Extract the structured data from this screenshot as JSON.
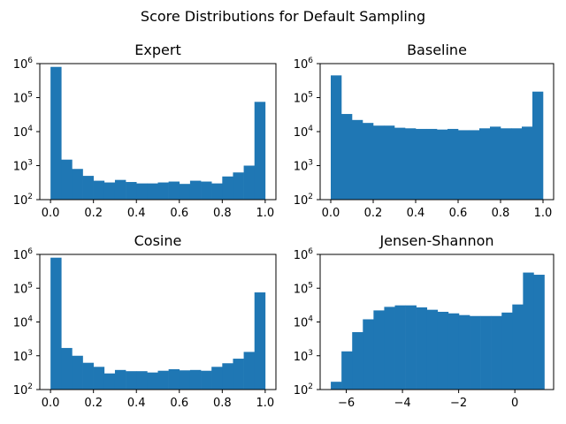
{
  "figure": {
    "title": "Score Distributions for Default Sampling"
  },
  "chart_data": [
    {
      "type": "bar",
      "title": "Expert",
      "y_scale": "log",
      "ylim": [
        100,
        1000000
      ],
      "xlim": [
        -0.05,
        1.05
      ],
      "bin_edges": [
        0.0,
        0.05,
        0.1,
        0.15,
        0.2,
        0.25,
        0.3,
        0.35,
        0.4,
        0.45,
        0.5,
        0.55,
        0.6,
        0.65,
        0.7,
        0.75,
        0.8,
        0.85,
        0.9,
        0.95,
        1.0
      ],
      "values": [
        800000,
        1500,
        800,
        500,
        360,
        320,
        380,
        330,
        300,
        300,
        320,
        340,
        290,
        360,
        340,
        300,
        480,
        630,
        1000,
        75000
      ],
      "x_ticks": [
        0.0,
        0.2,
        0.4,
        0.6,
        0.8,
        1.0
      ],
      "x_tick_labels": [
        "0.0",
        "0.2",
        "0.4",
        "0.6",
        "0.8",
        "1.0"
      ],
      "y_ticks": [
        100,
        1000,
        10000,
        100000,
        1000000
      ],
      "y_tick_exponents": [
        "2",
        "3",
        "4",
        "5",
        "6"
      ]
    },
    {
      "type": "bar",
      "title": "Baseline",
      "y_scale": "log",
      "ylim": [
        100,
        1000000
      ],
      "xlim": [
        -0.05,
        1.05
      ],
      "bin_edges": [
        0.0,
        0.05,
        0.1,
        0.15,
        0.2,
        0.25,
        0.3,
        0.35,
        0.4,
        0.45,
        0.5,
        0.55,
        0.6,
        0.65,
        0.7,
        0.75,
        0.8,
        0.85,
        0.9,
        0.95,
        1.0
      ],
      "values": [
        450000,
        33000,
        22000,
        18000,
        15000,
        15000,
        13000,
        12500,
        12000,
        12000,
        11500,
        12000,
        11000,
        11000,
        12500,
        14000,
        12500,
        12500,
        14000,
        150000
      ],
      "x_ticks": [
        0.0,
        0.2,
        0.4,
        0.6,
        0.8,
        1.0
      ],
      "x_tick_labels": [
        "0.0",
        "0.2",
        "0.4",
        "0.6",
        "0.8",
        "1.0"
      ],
      "y_ticks": [
        100,
        1000,
        10000,
        100000,
        1000000
      ],
      "y_tick_exponents": [
        "2",
        "3",
        "4",
        "5",
        "6"
      ]
    },
    {
      "type": "bar",
      "title": "Cosine",
      "y_scale": "log",
      "ylim": [
        100,
        1000000
      ],
      "xlim": [
        -0.05,
        1.05
      ],
      "bin_edges": [
        0.0,
        0.05,
        0.1,
        0.15,
        0.2,
        0.25,
        0.3,
        0.35,
        0.4,
        0.45,
        0.5,
        0.55,
        0.6,
        0.65,
        0.7,
        0.75,
        0.8,
        0.85,
        0.9,
        0.95,
        1.0
      ],
      "values": [
        800000,
        1700,
        1000,
        620,
        470,
        300,
        380,
        350,
        350,
        320,
        360,
        400,
        370,
        380,
        360,
        470,
        600,
        820,
        1300,
        75000
      ],
      "x_ticks": [
        0.0,
        0.2,
        0.4,
        0.6,
        0.8,
        1.0
      ],
      "x_tick_labels": [
        "0.0",
        "0.2",
        "0.4",
        "0.6",
        "0.8",
        "1.0"
      ],
      "y_ticks": [
        100,
        1000,
        10000,
        100000,
        1000000
      ],
      "y_tick_exponents": [
        "2",
        "3",
        "4",
        "5",
        "6"
      ]
    },
    {
      "type": "bar",
      "title": "Jensen-Shannon",
      "y_scale": "log",
      "ylim": [
        100,
        1000000
      ],
      "xlim": [
        -6.93,
        1.38
      ],
      "bin_edges": [
        -6.55,
        -6.17,
        -5.79,
        -5.41,
        -5.03,
        -4.65,
        -4.27,
        -3.89,
        -3.51,
        -3.13,
        -2.75,
        -2.37,
        -1.99,
        -1.61,
        -1.23,
        -0.85,
        -0.47,
        -0.09,
        0.29,
        0.67,
        1.05
      ],
      "values": [
        170,
        1350,
        5000,
        12000,
        22000,
        28000,
        31000,
        31000,
        27000,
        23000,
        20000,
        18000,
        16000,
        15000,
        15000,
        15000,
        19000,
        33000,
        290000,
        250000
      ],
      "x_ticks": [
        -6,
        -4,
        -2,
        0
      ],
      "x_tick_labels": [
        "−6",
        "−4",
        "−2",
        "0"
      ],
      "y_ticks": [
        100,
        1000,
        10000,
        100000,
        1000000
      ],
      "y_tick_exponents": [
        "2",
        "3",
        "4",
        "5",
        "6"
      ]
    }
  ]
}
